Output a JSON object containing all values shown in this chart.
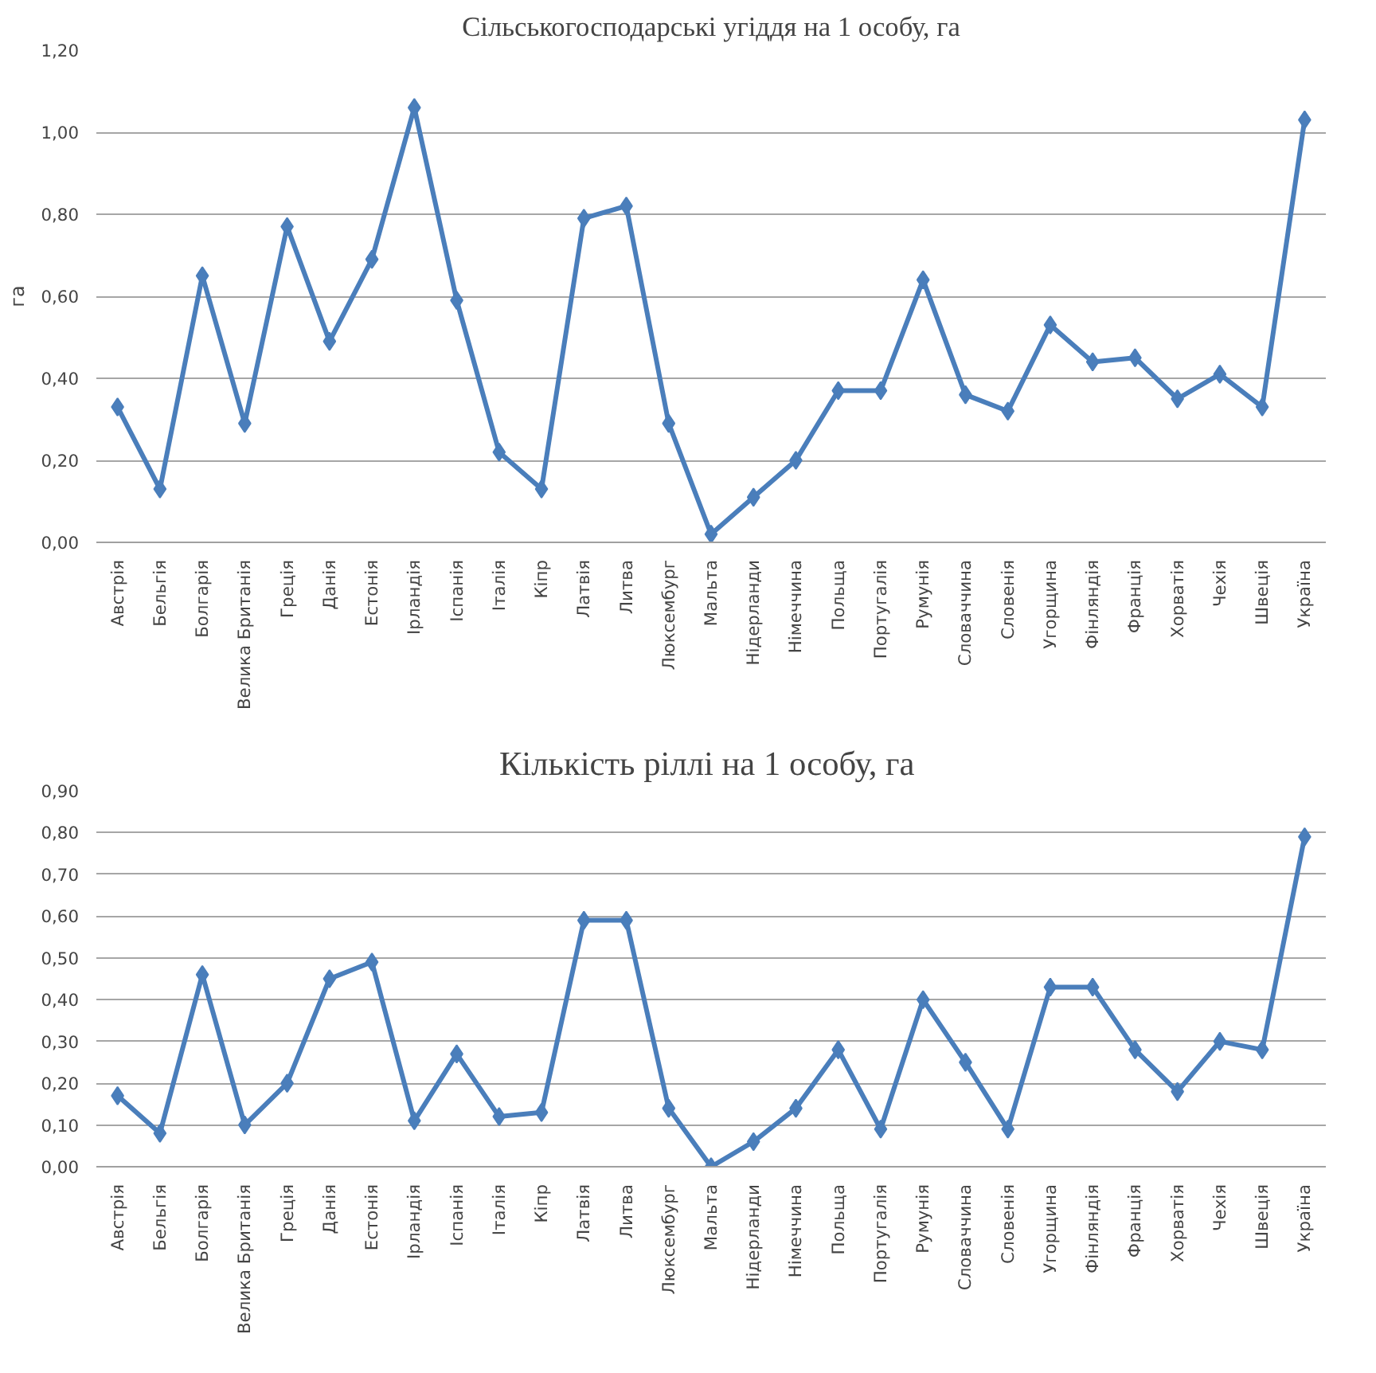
{
  "chart_data": [
    {
      "type": "line",
      "title": "Сільськогосподарські угіддя на 1 особу, га",
      "ylabel": "га",
      "categories": [
        "Австрія",
        "Бельгія",
        "Болгарія",
        "Велика Британія",
        "Греція",
        "Данія",
        "Естонія",
        "Ірландія",
        "Іспанія",
        "Італія",
        "Кіпр",
        "Латвія",
        "Литва",
        "Люксембург",
        "Мальта",
        "Нідерланди",
        "Німеччина",
        "Польща",
        "Португалія",
        "Румунія",
        "Словаччина",
        "Словенія",
        "Угорщина",
        "Фінляндія",
        "Франція",
        "Хорватія",
        "Чехія",
        "Швеція",
        "Україна"
      ],
      "series": [
        {
          "color": "#4a7ebb",
          "values": [
            0.33,
            0.13,
            0.65,
            0.29,
            0.77,
            0.49,
            0.69,
            1.06,
            0.59,
            0.22,
            0.13,
            0.79,
            0.82,
            0.29,
            0.02,
            0.11,
            0.2,
            0.37,
            0.37,
            0.64,
            0.36,
            0.32,
            0.53,
            0.44,
            0.45,
            0.35,
            0.41,
            0.33,
            1.03
          ]
        }
      ],
      "ylim": [
        0,
        1.2
      ],
      "yticks": [
        {
          "value": 0,
          "label": "0,00"
        },
        {
          "value": 0.2,
          "label": "0,20"
        },
        {
          "value": 0.4,
          "label": "0,40"
        },
        {
          "value": 0.6,
          "label": "0,60"
        },
        {
          "value": 0.8,
          "label": "0,80"
        },
        {
          "value": 1.0,
          "label": "1,00"
        },
        {
          "value": 1.2,
          "label": "1,20"
        }
      ],
      "grid": "y",
      "marker": "diamond",
      "line_style": "solid"
    },
    {
      "type": "line",
      "title": "Кількість  ріллі на 1 особу, га",
      "categories": [
        "Австрія",
        "Бельгія",
        "Болгарія",
        "Велика Британія",
        "Греція",
        "Данія",
        "Естонія",
        "Ірландія",
        "Іспанія",
        "Італія",
        "Кіпр",
        "Латвія",
        "Литва",
        "Люксембург",
        "Мальта",
        "Нідерланди",
        "Німеччина",
        "Польща",
        "Португалія",
        "Румунія",
        "Словаччина",
        "Словенія",
        "Угорщина",
        "Фінляндія",
        "Франція",
        "Хорватія",
        "Чехія",
        "Швеція",
        "Україна"
      ],
      "series": [
        {
          "color": "#4a7ebb",
          "values": [
            0.17,
            0.08,
            0.46,
            0.1,
            0.2,
            0.45,
            0.49,
            0.11,
            0.27,
            0.12,
            0.13,
            0.59,
            0.59,
            0.14,
            0.0,
            0.06,
            0.14,
            0.28,
            0.09,
            0.4,
            0.25,
            0.09,
            0.43,
            0.43,
            0.28,
            0.18,
            0.3,
            0.28,
            0.79
          ]
        }
      ],
      "ylim": [
        0,
        0.9
      ],
      "yticks": [
        {
          "value": 0,
          "label": "0,00"
        },
        {
          "value": 0.1,
          "label": "0,10"
        },
        {
          "value": 0.2,
          "label": "0,20"
        },
        {
          "value": 0.3,
          "label": "0,30"
        },
        {
          "value": 0.4,
          "label": "0,40"
        },
        {
          "value": 0.5,
          "label": "0,50"
        },
        {
          "value": 0.6,
          "label": "0,60"
        },
        {
          "value": 0.7,
          "label": "0,70"
        },
        {
          "value": 0.8,
          "label": "0,80"
        },
        {
          "value": 0.9,
          "label": "0,90"
        }
      ],
      "grid": "y",
      "marker": "diamond",
      "line_style": "solid"
    }
  ]
}
